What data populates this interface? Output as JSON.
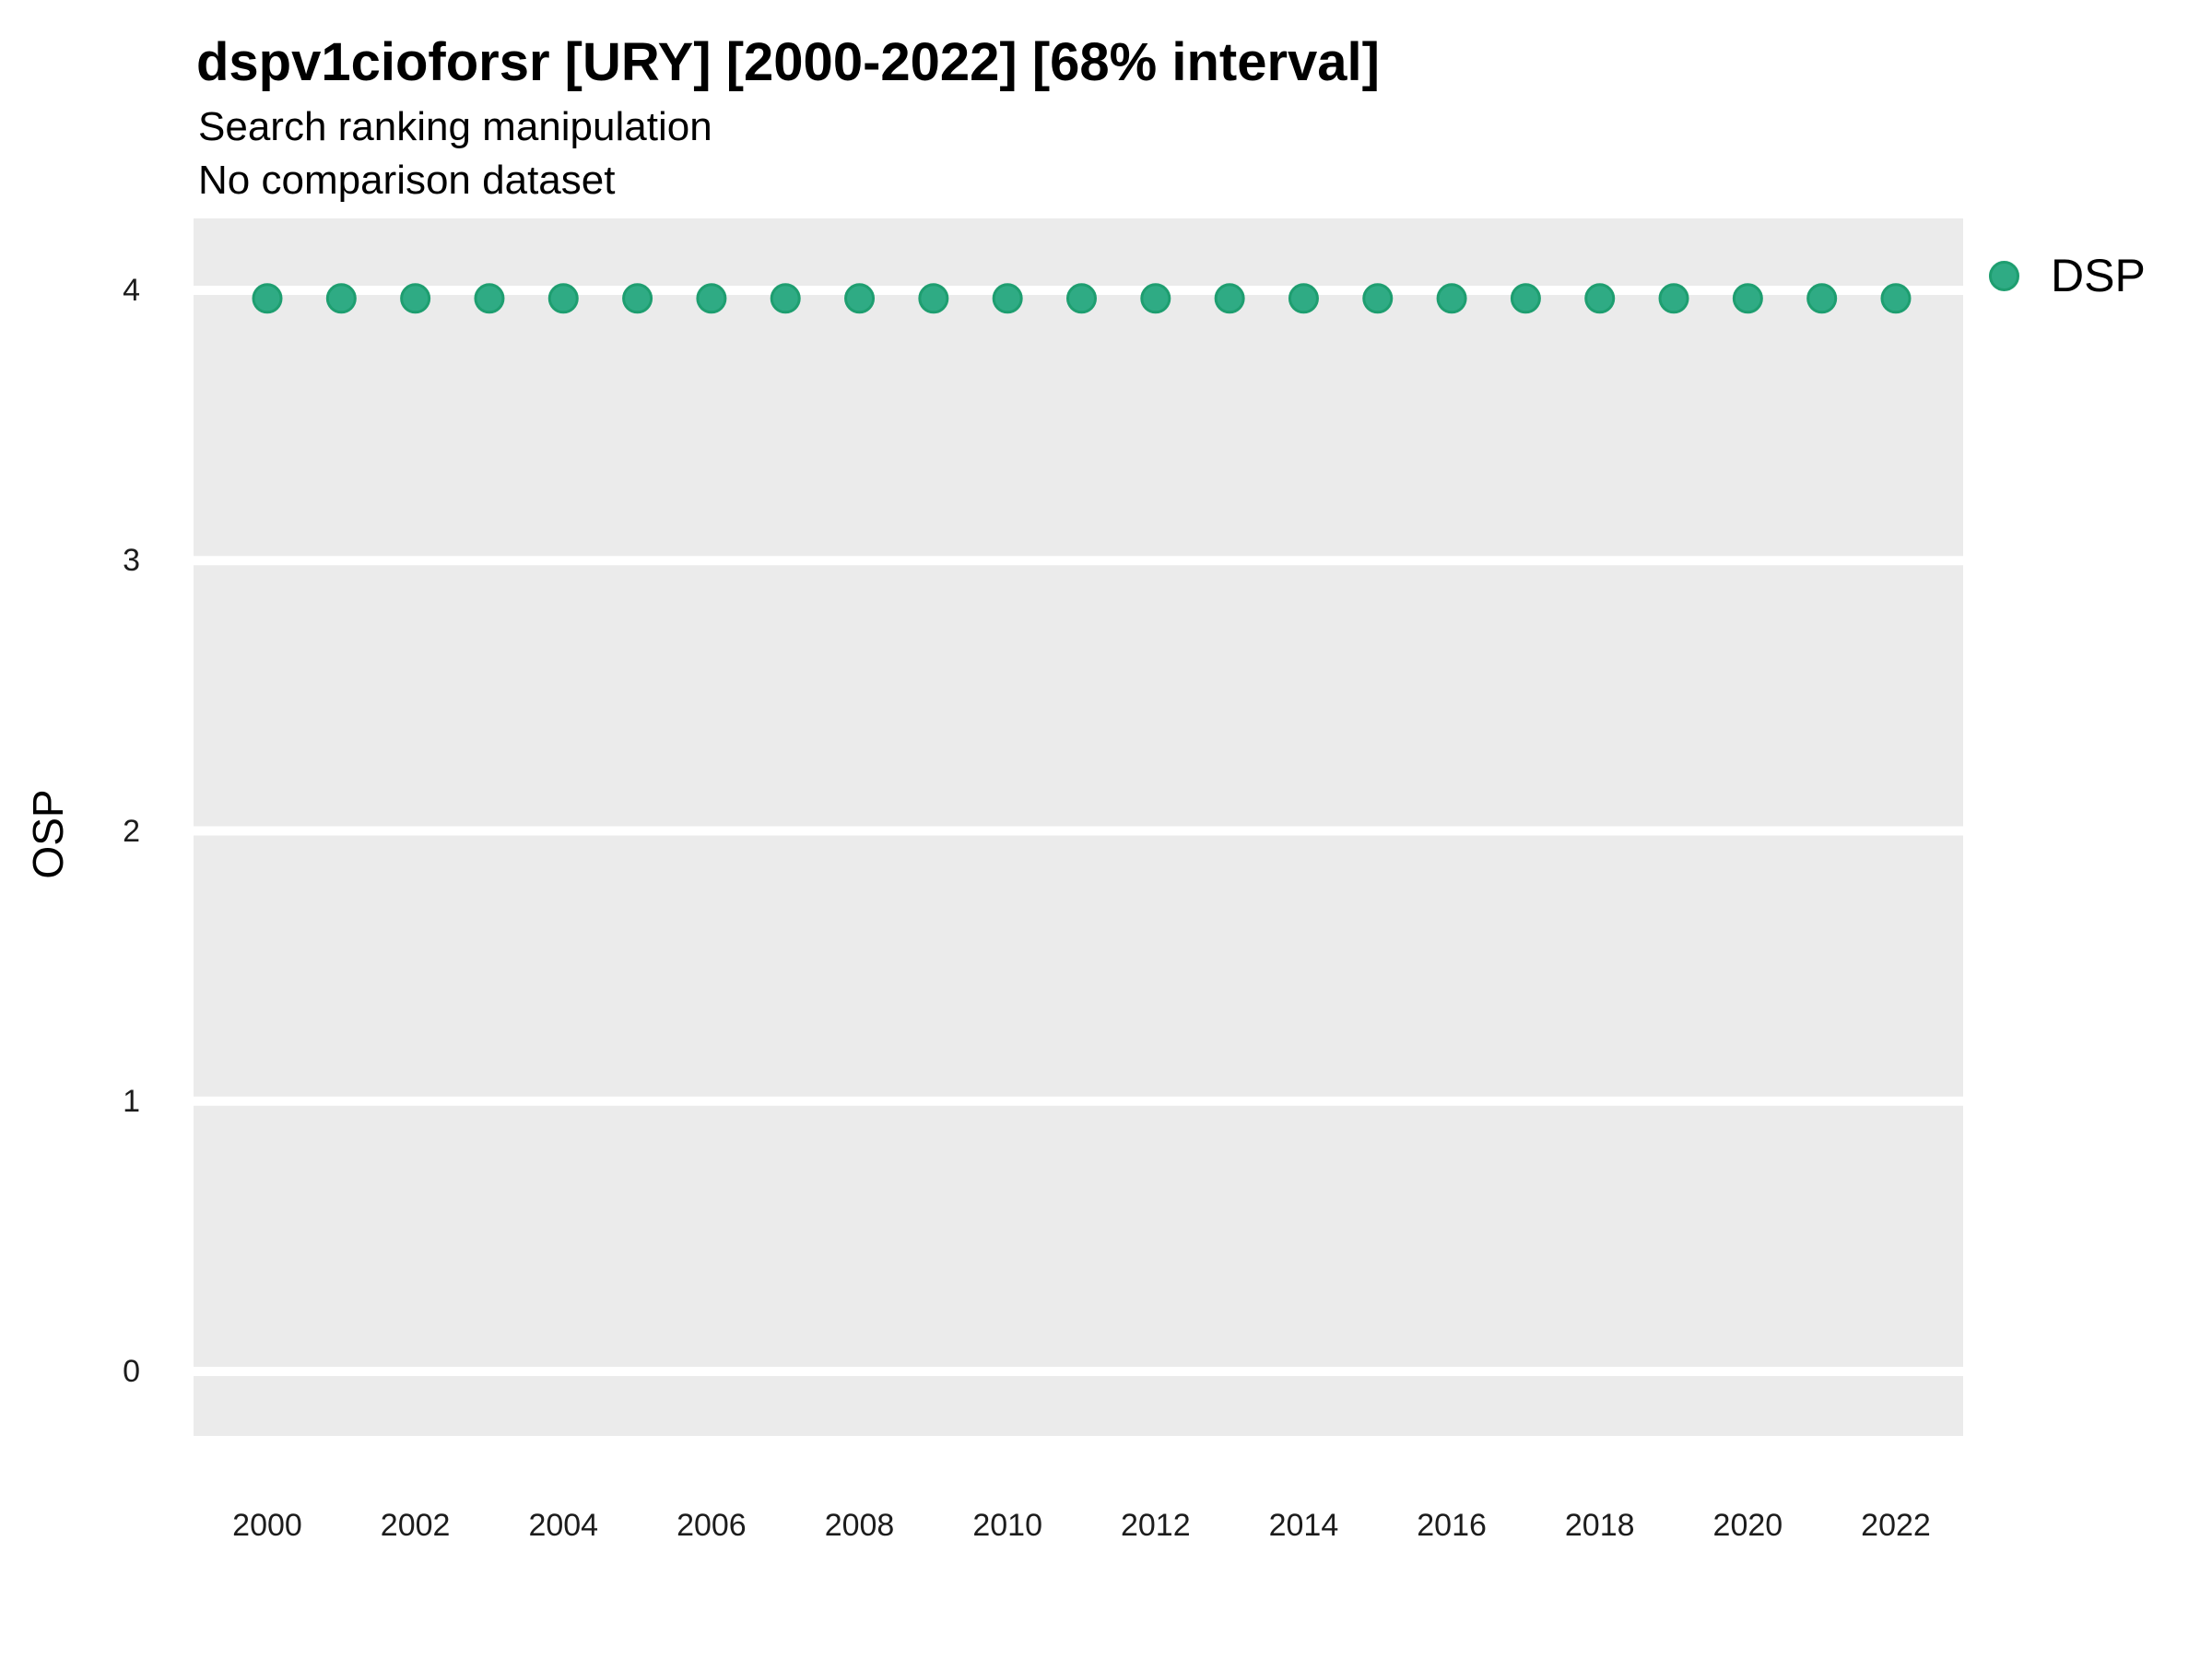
{
  "chart_data": {
    "type": "scatter",
    "title": "dspv1cioforsr [URY] [2000-2022] [68% interval]",
    "subtitle": "Search ranking manipulation",
    "note": "No comparison dataset",
    "xlabel": "",
    "ylabel": "OSP",
    "x_ticks": [
      2000,
      2002,
      2004,
      2006,
      2008,
      2010,
      2012,
      2014,
      2016,
      2018,
      2020,
      2022
    ],
    "y_ticks": [
      0,
      1,
      2,
      3,
      4
    ],
    "xlim": [
      1999,
      2022.9
    ],
    "ylim": [
      -0.24,
      4.27
    ],
    "grid": "major horizontal white gridlines on gray panel, no minor gridlines, no tick marks",
    "legend_position": "right-top",
    "legend": [
      {
        "label": "DSP",
        "fill": "#2FAB84",
        "stroke": "#1E9E70"
      }
    ],
    "series": [
      {
        "name": "DSP",
        "x": [
          2000,
          2001,
          2002,
          2003,
          2004,
          2005,
          2006,
          2007,
          2008,
          2009,
          2010,
          2011,
          2012,
          2013,
          2014,
          2015,
          2016,
          2017,
          2018,
          2019,
          2020,
          2021,
          2022
        ],
        "y": [
          3.97,
          3.97,
          3.97,
          3.97,
          3.97,
          3.97,
          3.97,
          3.97,
          3.97,
          3.97,
          3.97,
          3.97,
          3.97,
          3.97,
          3.97,
          3.97,
          3.97,
          3.97,
          3.97,
          3.97,
          3.97,
          3.97,
          3.97
        ]
      }
    ],
    "colors": {
      "panel_bg": "#EBEBEB",
      "gridline": "#FFFFFF",
      "point_fill": "#2FAB84",
      "point_stroke": "#1E9E70",
      "text": "#000000"
    }
  }
}
